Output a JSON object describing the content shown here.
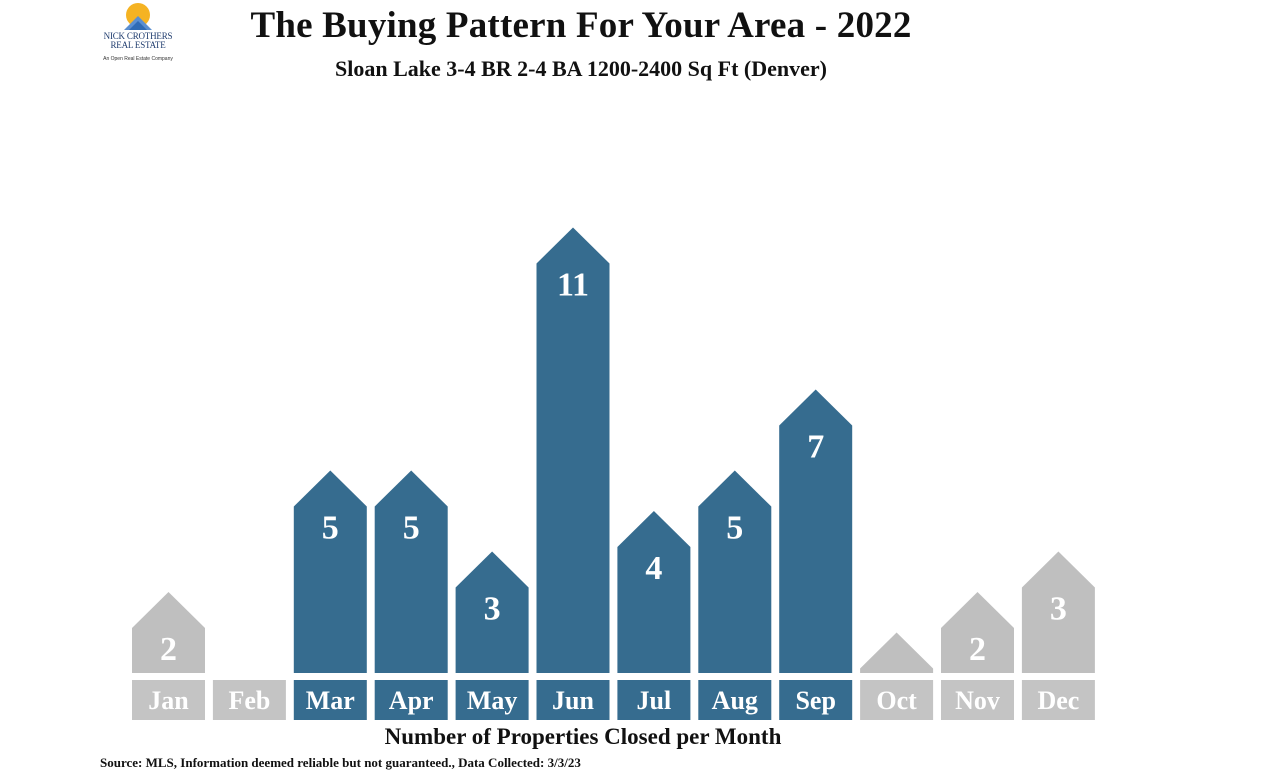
{
  "header": {
    "title": "The Buying Pattern For Your Area - 2022",
    "subtitle": "Sloan Lake 3-4 BR 2-4 BA 1200-2400 Sq Ft (Denver)"
  },
  "logo": {
    "brand_line1": "NICK CROTHERS",
    "brand_line2": "REAL ESTATE",
    "tagline": "An Open Real Estate Company"
  },
  "chart_data": {
    "type": "bar",
    "categories": [
      "Jan",
      "Feb",
      "Mar",
      "Apr",
      "May",
      "Jun",
      "Jul",
      "Aug",
      "Sep",
      "Oct",
      "Nov",
      "Dec"
    ],
    "values": [
      2,
      0,
      5,
      5,
      3,
      11,
      4,
      5,
      7,
      1,
      2,
      3
    ],
    "highlighted": [
      false,
      false,
      true,
      true,
      true,
      true,
      true,
      true,
      true,
      false,
      false,
      false
    ],
    "xlabel": "Number of Properties Closed per Month",
    "ylabel": "",
    "ylim": [
      0,
      12
    ],
    "grid": false,
    "colors": {
      "highlight": "#366c8f",
      "muted": "#bfbfbf",
      "label_bg": "#c4c4c4"
    }
  },
  "footer": {
    "source": "Source: MLS, Information deemed reliable but not guaranteed., Data Collected: 3/3/23"
  }
}
